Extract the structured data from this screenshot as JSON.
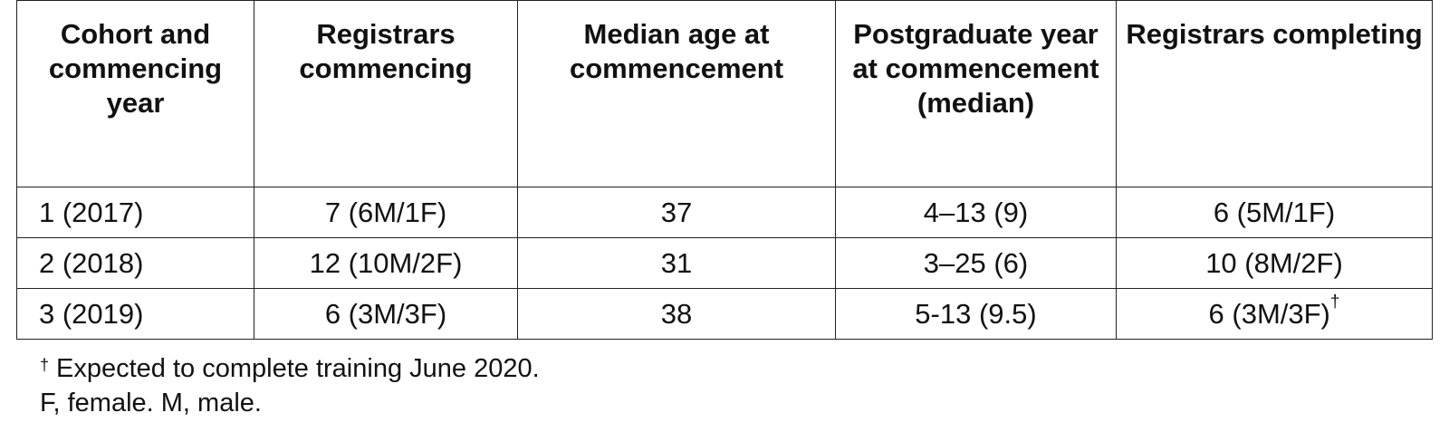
{
  "table": {
    "headers": [
      "Cohort and commencing year",
      "Registrars commencing",
      "Median age at commencement",
      "Postgraduate year at commencement (median)",
      "Registrars completing"
    ],
    "rows": [
      [
        "1 (2017)",
        "7 (6M/1F)",
        "37",
        "4–13 (9)",
        "6 (5M/1F)"
      ],
      [
        "2 (2018)",
        "12 (10M/2F)",
        "31",
        "3–25 (6)",
        "10 (8M/2F)"
      ],
      [
        "3 (2019)",
        "6 (3M/3F)",
        "38",
        "5-13 (9.5)",
        "6 (3M/3F)"
      ]
    ],
    "dagger": "†"
  },
  "notes": {
    "dagger": "†",
    "expected": "Expected to complete training June 2020.",
    "abbrev": "F, female. M, male."
  }
}
